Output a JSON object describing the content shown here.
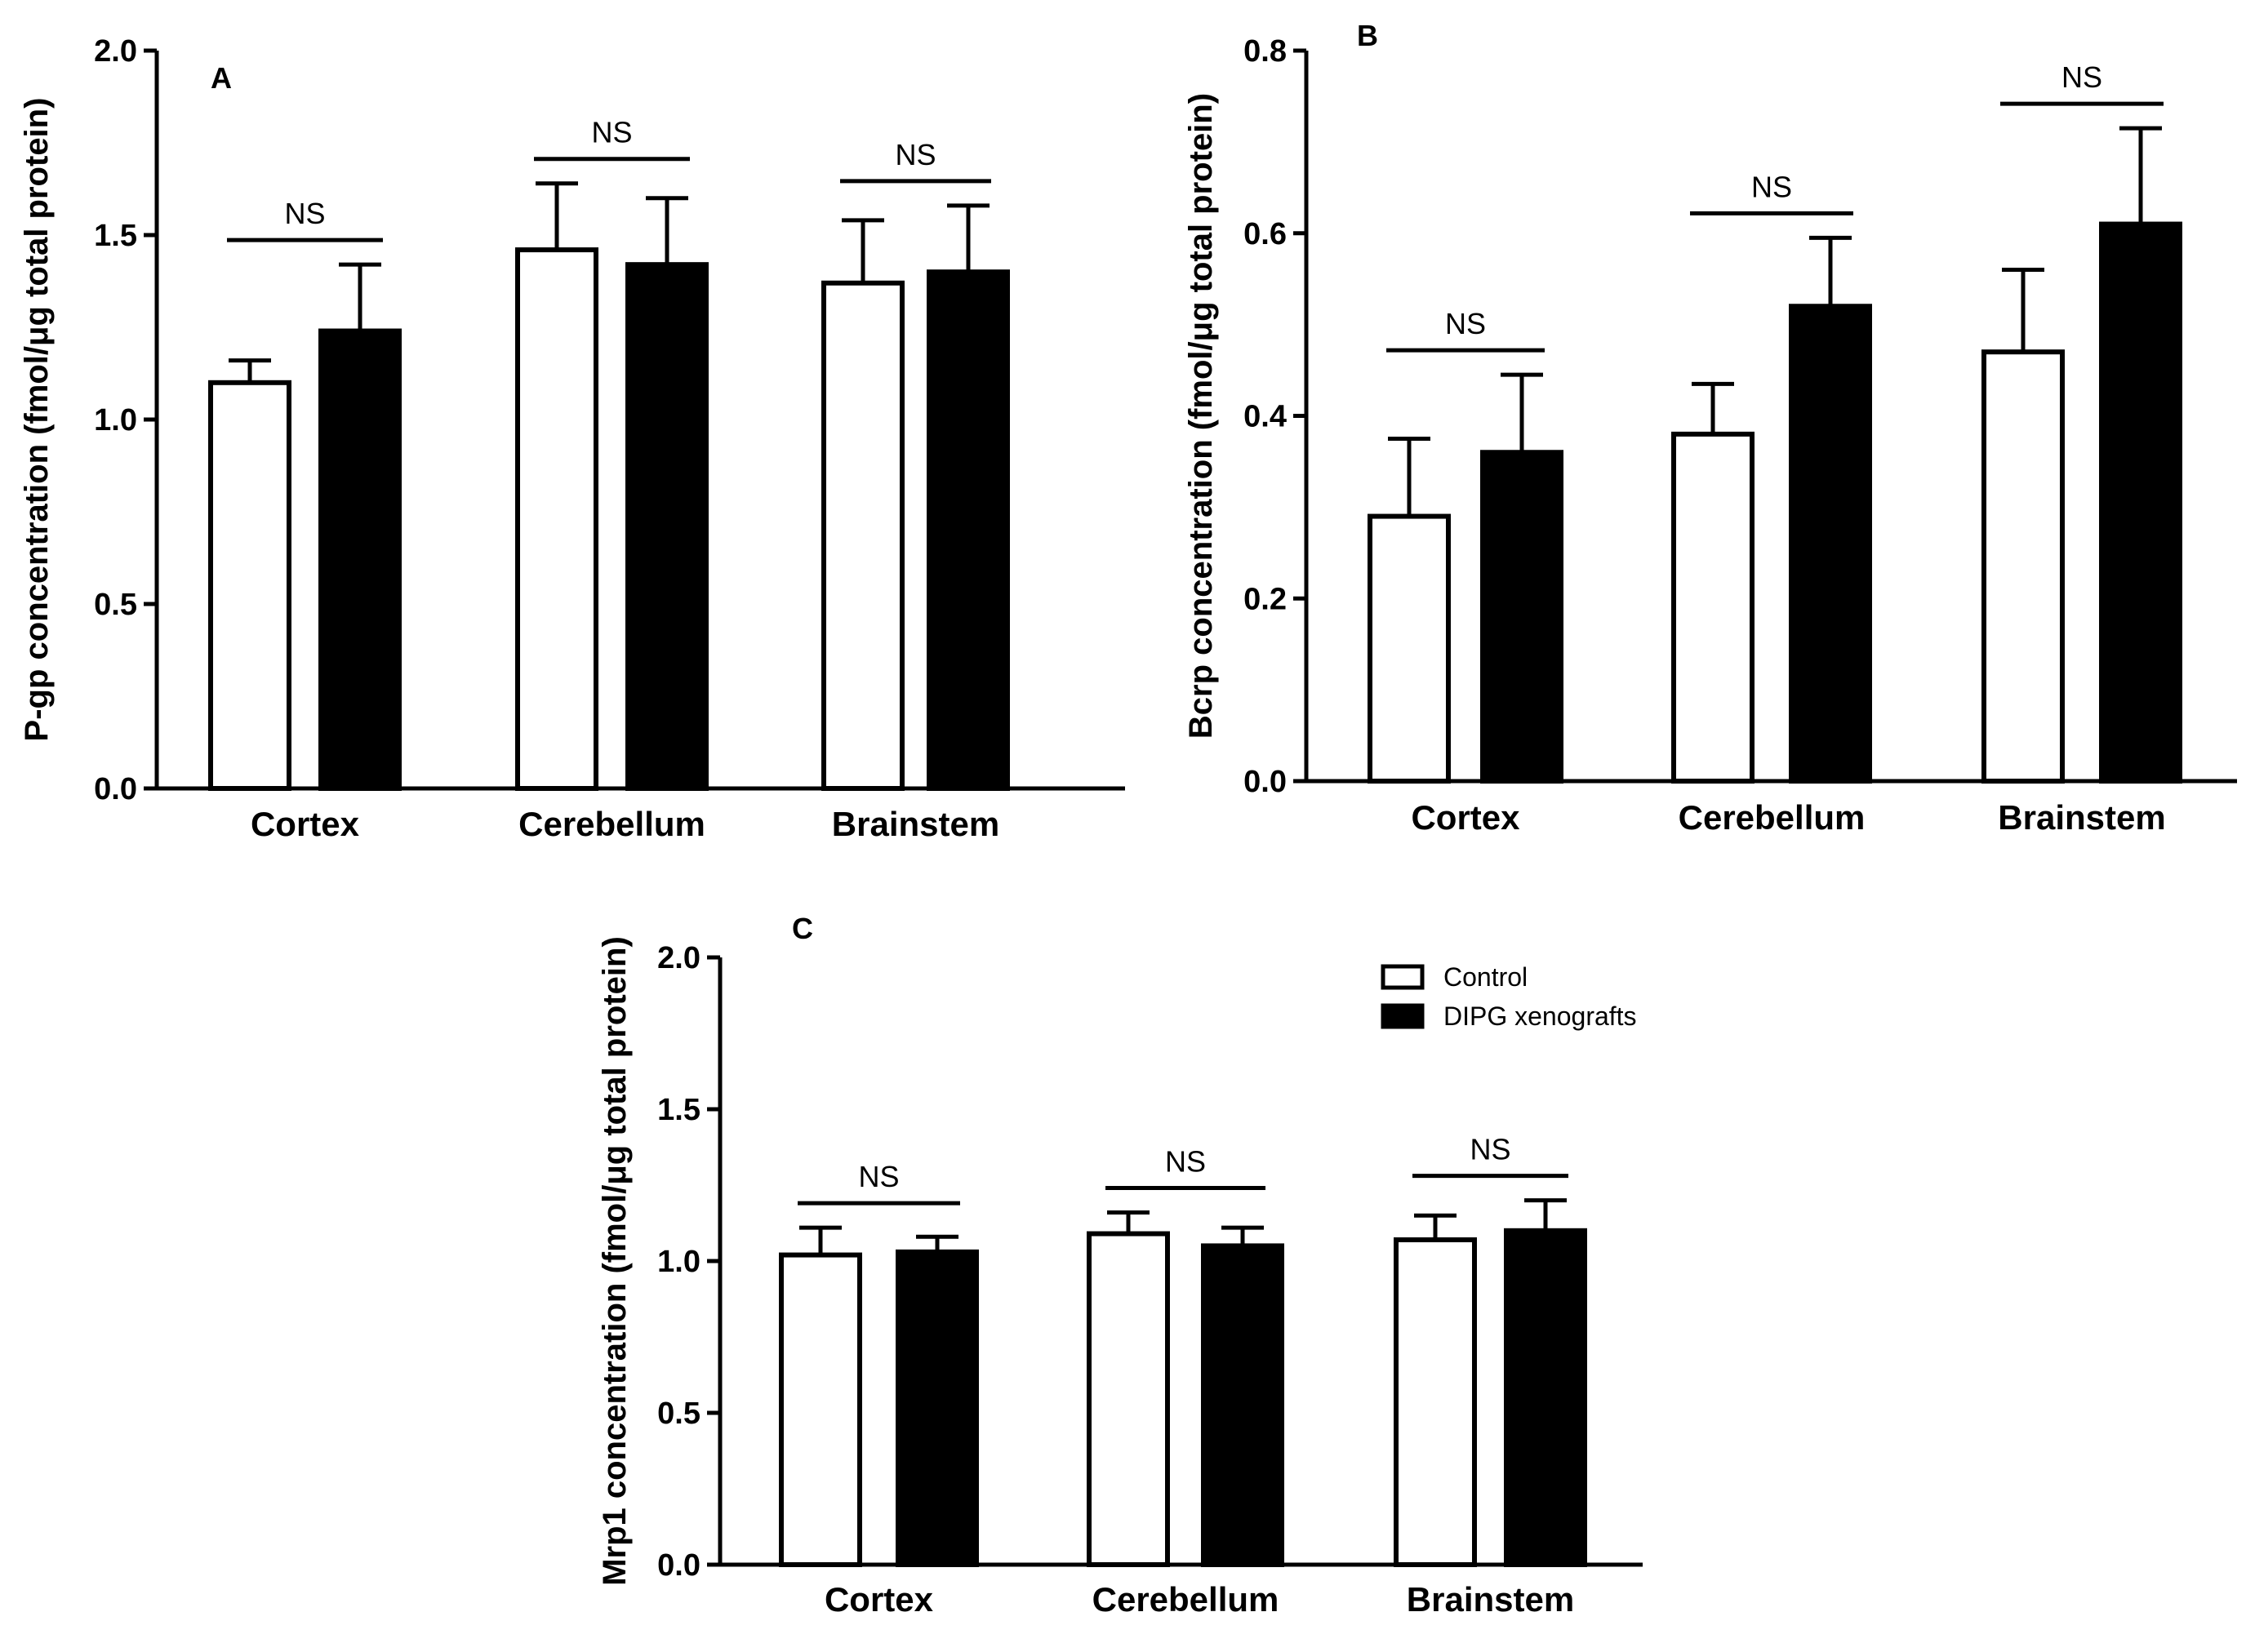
{
  "chart_data": [
    {
      "type": "bar",
      "panel": "A",
      "categories": [
        "Cortex",
        "Cerebellum",
        "Brainstem"
      ],
      "series": [
        {
          "name": "Control",
          "color": "#ffffff",
          "values": [
            1.1,
            1.46,
            1.37
          ],
          "errors": [
            0.06,
            0.18,
            0.17
          ]
        },
        {
          "name": "DIPG xenografts",
          "color": "#000000",
          "values": [
            1.24,
            1.42,
            1.4
          ],
          "errors": [
            0.18,
            0.18,
            0.18
          ]
        }
      ],
      "significance": [
        "NS",
        "NS",
        "NS"
      ],
      "ylabel": "P-gp concentration (fmol/μg total protein)",
      "ylim": [
        0,
        2.0
      ],
      "yticks": [
        "0.0",
        "0.5",
        "1.0",
        "1.5",
        "2.0"
      ]
    },
    {
      "type": "bar",
      "panel": "B",
      "categories": [
        "Cortex",
        "Cerebellum",
        "Brainstem"
      ],
      "series": [
        {
          "name": "Control",
          "color": "#ffffff",
          "values": [
            0.29,
            0.38,
            0.47
          ],
          "errors": [
            0.085,
            0.055,
            0.09
          ]
        },
        {
          "name": "DIPG xenografts",
          "color": "#000000",
          "values": [
            0.36,
            0.52,
            0.61
          ],
          "errors": [
            0.085,
            0.075,
            0.105
          ]
        }
      ],
      "significance": [
        "NS",
        "NS",
        "NS"
      ],
      "ylabel": "Bcrp concentration (fmol/μg total protein)",
      "ylim": [
        0,
        0.8
      ],
      "yticks": [
        "0.0",
        "0.2",
        "0.4",
        "0.6",
        "0.8"
      ]
    },
    {
      "type": "bar",
      "panel": "C",
      "categories": [
        "Cortex",
        "Cerebellum",
        "Brainstem"
      ],
      "series": [
        {
          "name": "Control",
          "color": "#ffffff",
          "values": [
            1.02,
            1.09,
            1.07
          ],
          "errors": [
            0.09,
            0.07,
            0.08
          ]
        },
        {
          "name": "DIPG xenografts",
          "color": "#000000",
          "values": [
            1.03,
            1.05,
            1.1
          ],
          "errors": [
            0.05,
            0.06,
            0.1
          ]
        }
      ],
      "significance": [
        "NS",
        "NS",
        "NS"
      ],
      "ylabel": "Mrp1 concentration (fmol/μg total protein)",
      "ylim": [
        0,
        2.0
      ],
      "yticks": [
        "0.0",
        "0.5",
        "1.0",
        "1.5",
        "2.0"
      ],
      "legend": [
        "Control",
        "DIPG xenografts"
      ],
      "legend_position": "top-right"
    }
  ]
}
